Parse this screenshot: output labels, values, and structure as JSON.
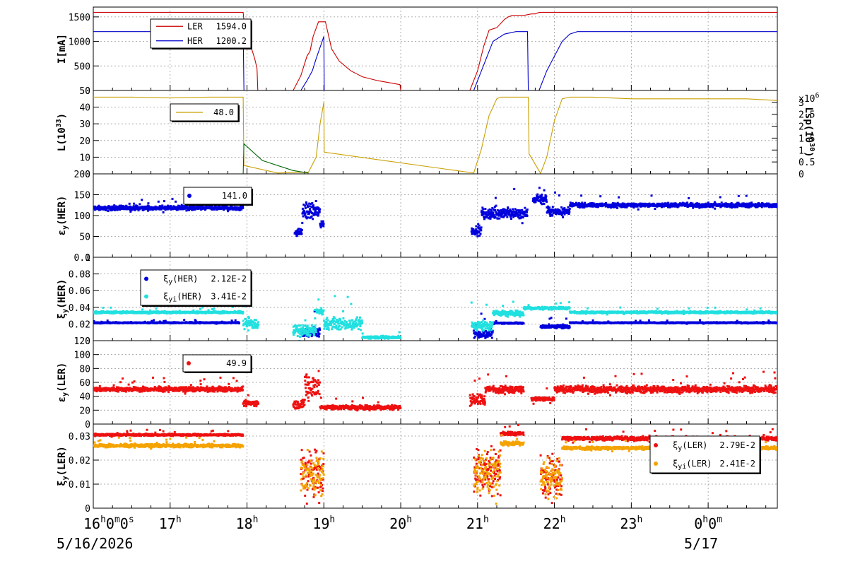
{
  "time_axis": {
    "ticks": [
      "16",
      "17",
      "18",
      "19",
      "20",
      "21",
      "22",
      "23",
      "0"
    ],
    "tick_label_first_suffix": "0m0s",
    "tick_label_last_suffix": "0m",
    "date_start": "5/16/2026",
    "date_next": "5/17",
    "range_hours": [
      16,
      24.9
    ]
  },
  "chart_data": [
    {
      "type": "line",
      "panel": "current",
      "ylabel": "I[mA]",
      "ylim": [
        0,
        1700
      ],
      "yticks": [
        "0",
        "500",
        "1000",
        "1500"
      ],
      "grid": true,
      "legend_position": "top-left",
      "series": [
        {
          "name": "LER",
          "legend_value": "1594.0",
          "color": "#cc0000",
          "x": [
            16.0,
            17.95,
            17.97,
            18.05,
            18.1,
            18.13,
            18.14,
            18.6,
            18.7,
            18.78,
            18.82,
            18.86,
            18.93,
            19.02,
            19.1,
            19.2,
            19.35,
            19.5,
            19.7,
            19.85,
            19.99,
            20.0,
            20.9,
            21.0,
            21.08,
            21.15,
            21.25,
            21.35,
            21.4,
            21.45,
            21.6,
            21.7,
            21.75,
            21.8,
            21.85,
            22.0,
            23.0,
            24.0,
            24.9
          ],
          "y": [
            1594,
            1594,
            1250,
            900,
            650,
            450,
            0,
            0,
            300,
            700,
            800,
            1100,
            1400,
            1400,
            850,
            600,
            400,
            280,
            200,
            160,
            120,
            0,
            0,
            400,
            900,
            1230,
            1280,
            1450,
            1500,
            1530,
            1530,
            1560,
            1560,
            1590,
            1594,
            1594,
            1594,
            1594,
            1594
          ]
        },
        {
          "name": "HER",
          "legend_value": "1200.2",
          "color": "#0000cc",
          "x": [
            16.0,
            17.95,
            17.96,
            18.7,
            18.78,
            18.85,
            18.9,
            19.0,
            19.005,
            20.95,
            21.0,
            21.1,
            21.2,
            21.35,
            21.5,
            21.65,
            21.66,
            21.8,
            21.9,
            22.0,
            22.1,
            22.2,
            22.3,
            23.0,
            24.0,
            24.9
          ],
          "y": [
            1200,
            1200,
            0,
            0,
            200,
            400,
            650,
            1100,
            0,
            0,
            200,
            600,
            1000,
            1150,
            1200,
            1200,
            0,
            0,
            400,
            700,
            1000,
            1150,
            1200,
            1200,
            1200,
            1200
          ]
        }
      ]
    },
    {
      "type": "line",
      "panel": "luminosity",
      "ylabel": "L(10^33)",
      "ylim": [
        0,
        50
      ],
      "yticks": [
        "0",
        "10",
        "20",
        "30",
        "40",
        "50"
      ],
      "y2label": "Lsp(10^30)",
      "y2_multiplier": "x10^6",
      "y2lim": [
        0,
        3.5
      ],
      "y2ticks": [
        "0",
        "0.5",
        "1",
        "1.5",
        "2",
        "2.5",
        "3"
      ],
      "grid": true,
      "legend_position": "top-left",
      "series": [
        {
          "name": "",
          "legend_value": "48.0",
          "color": "#c8a000",
          "x": [
            16.0,
            16.5,
            17.0,
            17.5,
            17.95,
            17.96,
            18.4,
            18.8,
            18.9,
            18.95,
            19.0,
            19.005,
            20.95,
            21.05,
            21.15,
            21.25,
            21.3,
            21.5,
            21.66,
            21.67,
            21.82,
            21.9,
            22.0,
            22.1,
            22.2,
            22.5,
            23.0,
            23.5,
            24.0,
            24.5,
            24.9
          ],
          "y": [
            46,
            46,
            45.5,
            46,
            46,
            5,
            0.5,
            1,
            10,
            30,
            43,
            13,
            0.5,
            15,
            35,
            45,
            46,
            46,
            46,
            12,
            0.3,
            10,
            32,
            45,
            46,
            46,
            45,
            45,
            45,
            45,
            44
          ]
        },
        {
          "name": "",
          "color": "#006400",
          "x": [
            17.95,
            17.96,
            18.2,
            18.6,
            18.8
          ],
          "y": [
            0,
            18,
            8,
            2,
            0.5
          ]
        }
      ]
    },
    {
      "type": "scatter",
      "panel": "emittance_her",
      "ylabel": "εy(HER)",
      "ylim": [
        0,
        200
      ],
      "yticks": [
        "0",
        "50",
        "100",
        "150",
        "200"
      ],
      "grid": true,
      "legend_position": "top-left",
      "series": [
        {
          "name": "",
          "legend_value": "141.0",
          "color": "#0000dd",
          "segments": [
            [
              16.0,
              17.95,
              118,
              6
            ],
            [
              18.62,
              18.72,
              60,
              10
            ],
            [
              18.72,
              18.95,
              110,
              25
            ],
            [
              18.95,
              19.0,
              80,
              10
            ],
            [
              20.92,
              21.05,
              65,
              15
            ],
            [
              21.05,
              21.65,
              105,
              15
            ],
            [
              21.72,
              21.9,
              140,
              15
            ],
            [
              21.9,
              22.2,
              110,
              12
            ],
            [
              22.2,
              24.9,
              125,
              6
            ]
          ]
        }
      ]
    },
    {
      "type": "scatter",
      "panel": "beam_beam_her",
      "ylabel": "ξy(HER)",
      "ylim": [
        0,
        0.1
      ],
      "yticks": [
        "0",
        "0.02",
        "0.04",
        "0.06",
        "0.08",
        "0.1"
      ],
      "grid": true,
      "legend_position": "top-left",
      "series": [
        {
          "name": "ξy(HER)",
          "legend_value": "2.12E-2",
          "color": "#0000dd",
          "segments": [
            [
              16.0,
              17.9,
              0.0215,
              0.0008
            ],
            [
              18.72,
              18.95,
              0.01,
              0.006
            ],
            [
              20.95,
              21.2,
              0.008,
              0.006
            ],
            [
              21.2,
              21.6,
              0.021,
              0.001
            ],
            [
              21.82,
              22.2,
              0.017,
              0.003
            ],
            [
              22.2,
              24.9,
              0.0215,
              0.0008
            ]
          ]
        },
        {
          "name": "ξyi(HER)",
          "legend_value": "3.41E-2",
          "color": "#22e0e0",
          "segments": [
            [
              16.0,
              17.95,
              0.034,
              0.0015
            ],
            [
              17.95,
              18.15,
              0.02,
              0.008
            ],
            [
              18.6,
              18.9,
              0.012,
              0.008
            ],
            [
              18.9,
              19.0,
              0.035,
              0.004
            ],
            [
              19.0,
              19.5,
              0.02,
              0.008
            ],
            [
              19.5,
              20.0,
              0.004,
              0.002
            ],
            [
              20.92,
              21.2,
              0.018,
              0.008
            ],
            [
              21.2,
              21.6,
              0.033,
              0.004
            ],
            [
              21.6,
              22.2,
              0.039,
              0.002
            ],
            [
              22.2,
              24.9,
              0.034,
              0.0015
            ]
          ]
        }
      ]
    },
    {
      "type": "scatter",
      "panel": "emittance_ler",
      "ylabel": "εy(LER)",
      "ylim": [
        0,
        120
      ],
      "yticks": [
        "0",
        "20",
        "40",
        "60",
        "80",
        "100",
        "120"
      ],
      "grid": true,
      "legend_position": "top-left",
      "series": [
        {
          "name": "",
          "legend_value": "49.9",
          "color": "#ee1111",
          "segments": [
            [
              16.0,
              17.95,
              50,
              4
            ],
            [
              17.95,
              18.15,
              30,
              5
            ],
            [
              18.6,
              18.75,
              28,
              8
            ],
            [
              18.75,
              18.95,
              55,
              25
            ],
            [
              18.95,
              20.0,
              24,
              4
            ],
            [
              20.9,
              21.1,
              35,
              10
            ],
            [
              21.1,
              21.6,
              50,
              6
            ],
            [
              21.7,
              22.0,
              36,
              4
            ],
            [
              22.0,
              24.9,
              50,
              6
            ]
          ]
        }
      ]
    },
    {
      "type": "scatter",
      "panel": "beam_beam_ler",
      "ylabel": "ξy(LER)",
      "ylim": [
        0,
        0.035
      ],
      "yticks": [
        "0",
        "0.01",
        "0.02",
        "0.03"
      ],
      "grid": true,
      "legend_position": "top-right",
      "series": [
        {
          "name": "ξy(LER)",
          "legend_value": "2.79E-2",
          "color": "#ee1111",
          "segments": [
            [
              16.0,
              17.95,
              0.0305,
              0.0005
            ],
            [
              18.7,
              19.0,
              0.015,
              0.012
            ],
            [
              20.95,
              21.3,
              0.016,
              0.012
            ],
            [
              21.3,
              21.6,
              0.031,
              0.001
            ],
            [
              21.82,
              22.1,
              0.014,
              0.01
            ],
            [
              22.1,
              24.9,
              0.029,
              0.001
            ]
          ]
        },
        {
          "name": "ξyi(LER)",
          "legend_value": "2.41E-2",
          "color": "#f4a300",
          "segments": [
            [
              16.0,
              17.95,
              0.026,
              0.0008
            ],
            [
              18.7,
              19.0,
              0.014,
              0.012
            ],
            [
              20.95,
              21.3,
              0.015,
              0.012
            ],
            [
              21.3,
              21.6,
              0.027,
              0.001
            ],
            [
              21.82,
              22.1,
              0.013,
              0.01
            ],
            [
              22.1,
              24.9,
              0.025,
              0.0008
            ]
          ]
        }
      ]
    }
  ]
}
